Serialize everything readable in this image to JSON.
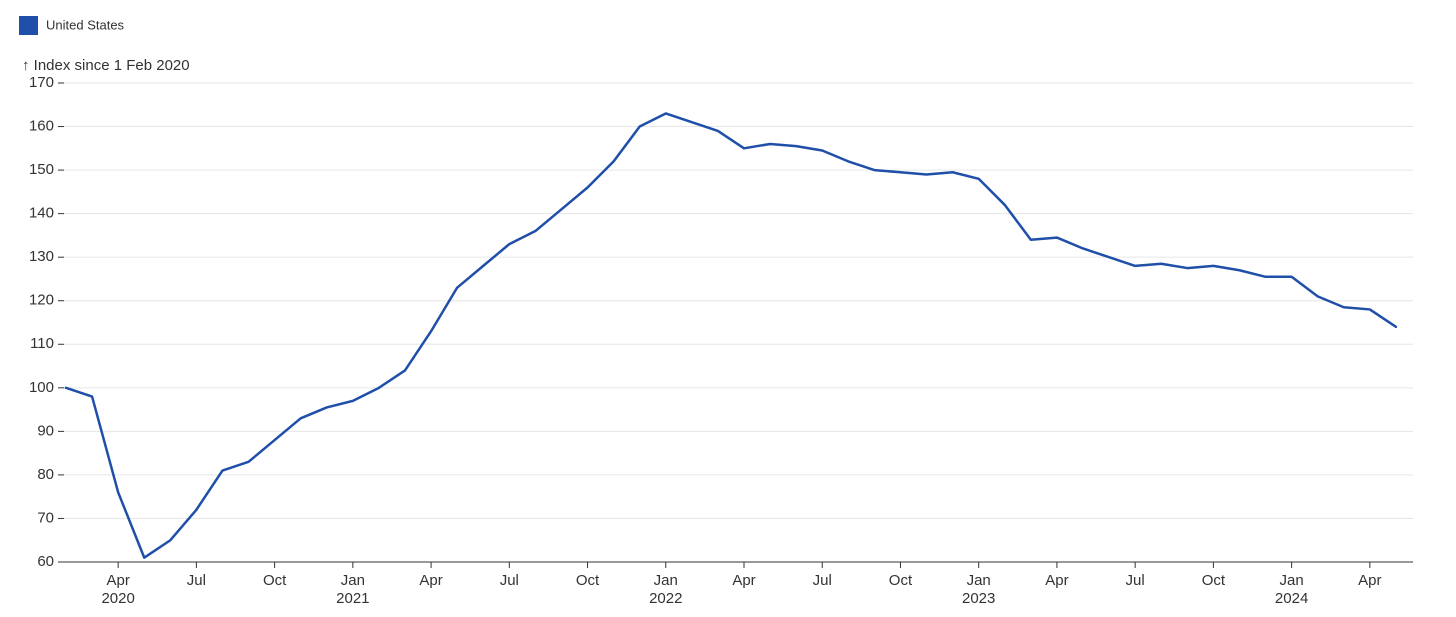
{
  "chart_data": {
    "type": "line",
    "y_axis_title": "↑ Index since 1 Feb 2020",
    "x": [
      "2020-02",
      "2020-03",
      "2020-04",
      "2020-05",
      "2020-06",
      "2020-07",
      "2020-08",
      "2020-09",
      "2020-10",
      "2020-11",
      "2020-12",
      "2021-01",
      "2021-02",
      "2021-03",
      "2021-04",
      "2021-05",
      "2021-06",
      "2021-07",
      "2021-08",
      "2021-09",
      "2021-10",
      "2021-11",
      "2021-12",
      "2022-01",
      "2022-02",
      "2022-03",
      "2022-04",
      "2022-05",
      "2022-06",
      "2022-07",
      "2022-08",
      "2022-09",
      "2022-10",
      "2022-11",
      "2022-12",
      "2023-01",
      "2023-02",
      "2023-03",
      "2023-04",
      "2023-05",
      "2023-06",
      "2023-07",
      "2023-08",
      "2023-09",
      "2023-10",
      "2023-11",
      "2023-12",
      "2024-01",
      "2024-02",
      "2024-03",
      "2024-04",
      "2024-05"
    ],
    "series": [
      {
        "name": "United States",
        "color": "#1f4fa8",
        "values": [
          100,
          98,
          76,
          61,
          65,
          72,
          81,
          83,
          88,
          93,
          95.5,
          97,
          100,
          104,
          113,
          123,
          128,
          133,
          136,
          141,
          146,
          152,
          160,
          163,
          161,
          159,
          155,
          156,
          155.5,
          154.5,
          152,
          150,
          149.5,
          149,
          149.5,
          148,
          142,
          134,
          134.5,
          132,
          130,
          128,
          128.5,
          127.5,
          128,
          127,
          125.5,
          125.5,
          121,
          118.5,
          118,
          114
        ]
      }
    ],
    "xlim": [
      "2020-02",
      "2024-06"
    ],
    "xticks": [
      {
        "value": "2020-04",
        "label": "Apr"
      },
      {
        "value": "2020-07",
        "label": "Jul"
      },
      {
        "value": "2020-10",
        "label": "Oct"
      },
      {
        "value": "2021-01",
        "label": "Jan"
      },
      {
        "value": "2021-04",
        "label": "Apr"
      },
      {
        "value": "2021-07",
        "label": "Jul"
      },
      {
        "value": "2021-10",
        "label": "Oct"
      },
      {
        "value": "2022-01",
        "label": "Jan"
      },
      {
        "value": "2022-04",
        "label": "Apr"
      },
      {
        "value": "2022-07",
        "label": "Jul"
      },
      {
        "value": "2022-10",
        "label": "Oct"
      },
      {
        "value": "2023-01",
        "label": "Jan"
      },
      {
        "value": "2023-04",
        "label": "Apr"
      },
      {
        "value": "2023-07",
        "label": "Jul"
      },
      {
        "value": "2023-10",
        "label": "Oct"
      },
      {
        "value": "2024-01",
        "label": "Jan"
      },
      {
        "value": "2024-04",
        "label": "Apr"
      }
    ],
    "xtick_years": [
      {
        "value": "2020-04",
        "label": "2020"
      },
      {
        "value": "2021-01",
        "label": "2021"
      },
      {
        "value": "2022-01",
        "label": "2022"
      },
      {
        "value": "2023-01",
        "label": "2023"
      },
      {
        "value": "2024-01",
        "label": "2024"
      }
    ],
    "ylim": [
      60,
      170
    ],
    "yticks": [
      60,
      70,
      80,
      90,
      100,
      110,
      120,
      130,
      140,
      150,
      160,
      170
    ],
    "grid": true
  }
}
